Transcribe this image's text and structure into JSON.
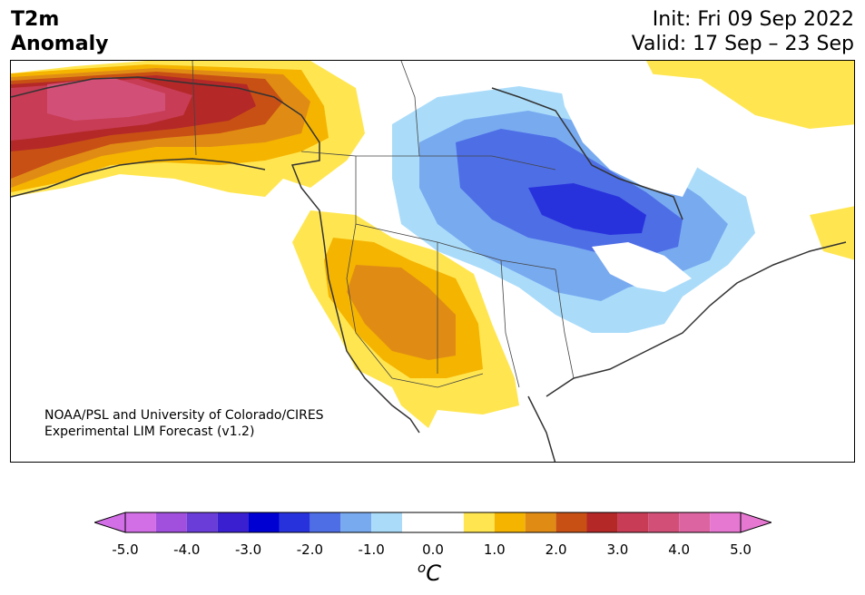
{
  "header": {
    "title_line1": "T2m",
    "title_line2": "Anomaly",
    "init": "Init: Fri 09 Sep 2022",
    "valid": "Valid: 17 Sep – 23 Sep"
  },
  "credit": {
    "line1": "NOAA/PSL and University of Colorado/CIRES",
    "line2": "Experimental LIM Forecast (v1.2)"
  },
  "colorbar": {
    "unit_prefix": "o",
    "unit": "C",
    "tick_labels": [
      "-5.0",
      "-4.0",
      "-3.0",
      "-2.0",
      "-1.0",
      "0.0",
      "1.0",
      "2.0",
      "3.0",
      "4.0",
      "5.0"
    ],
    "levels": [
      -5.0,
      -4.5,
      -4.0,
      -3.5,
      -3.0,
      -2.5,
      -2.0,
      -1.5,
      -1.0,
      -0.5,
      0.5,
      1.0,
      1.5,
      2.0,
      2.5,
      3.0,
      3.5,
      4.0,
      4.5,
      5.0
    ],
    "colors": [
      "#d26ee6",
      "#a050dc",
      "#6a3cd8",
      "#3a1fd0",
      "#0000d2",
      "#2832dc",
      "#4e6ee6",
      "#78aaf0",
      "#aadcfa",
      "#ffffff",
      "#ffe650",
      "#f5b400",
      "#e08c14",
      "#c85014",
      "#b42828",
      "#c83c55",
      "#d25078",
      "#dc64a0",
      "#e678d2"
    ],
    "under_color": "#d26ee6",
    "over_color": "#e678d2"
  }
}
